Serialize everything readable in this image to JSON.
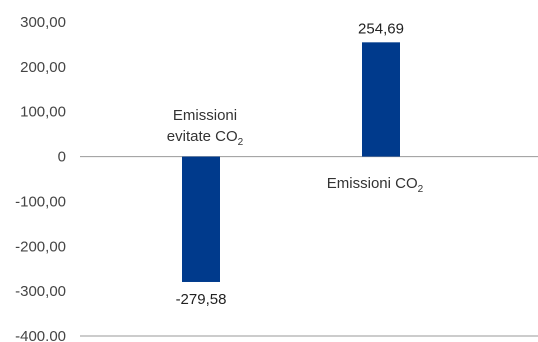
{
  "chart_data": {
    "type": "bar",
    "categories": [
      "Emissioni evitate CO2",
      "Emissioni CO2"
    ],
    "category_labels": [
      {
        "lines": [
          "Emissioni",
          "evitate CO"
        ],
        "subscript": "2"
      },
      {
        "lines": [
          "Emissioni CO"
        ],
        "subscript": "2"
      }
    ],
    "values": [
      -279.58,
      254.69
    ],
    "value_labels": [
      "-279,58",
      "254,69"
    ],
    "ylim": [
      -400,
      300
    ],
    "yticks": [
      300,
      200,
      100,
      0,
      -100,
      -200,
      -300,
      -400
    ],
    "ytick_labels": [
      "300,00",
      "200,00",
      "100,00",
      "0",
      "-100,00",
      "-200,00",
      "-300,00",
      "-400.00"
    ],
    "bar_color": "#003a8c",
    "axis_color": "#9a9a9a",
    "grid": false,
    "title": "",
    "xlabel": "",
    "ylabel": ""
  }
}
